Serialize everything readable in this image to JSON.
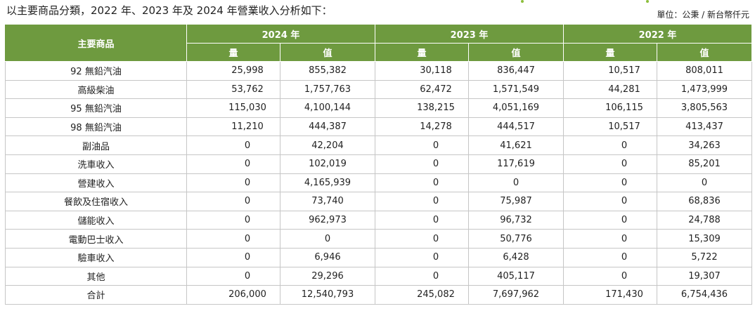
{
  "intro": "以主要商品分類，2022 年、2023 年及 2024 年營業收入分析如下：",
  "unit": "單位：公秉 / 新台幣仟元",
  "colors": {
    "header_bg": "#6e9a3f",
    "accent": "#8cbe3c",
    "border": "#c6c6c6"
  },
  "table": {
    "corner": "主要商品",
    "years": [
      "2024 年",
      "2023 年",
      "2022 年"
    ],
    "sub_q": "量",
    "sub_v": "值",
    "rows": [
      {
        "name": "92 無鉛汽油",
        "cells": [
          "25,998",
          "855,382",
          "30,118",
          "836,447",
          "10,517",
          "808,011"
        ]
      },
      {
        "name": "高級柴油",
        "cells": [
          "53,762",
          "1,757,763",
          "62,472",
          "1,571,549",
          "44,281",
          "1,473,999"
        ]
      },
      {
        "name": "95 無鉛汽油",
        "cells": [
          "115,030",
          "4,100,144",
          "138,215",
          "4,051,169",
          "106,115",
          "3,805,563"
        ]
      },
      {
        "name": "98 無鉛汽油",
        "cells": [
          "11,210",
          "444,387",
          "14,278",
          "444,517",
          "10,517",
          "413,437"
        ]
      },
      {
        "name": "副油品",
        "cells": [
          "0",
          "42,204",
          "0",
          "41,621",
          "0",
          "34,263"
        ]
      },
      {
        "name": "洗車收入",
        "cells": [
          "0",
          "102,019",
          "0",
          "117,619",
          "0",
          "85,201"
        ]
      },
      {
        "name": "營建收入",
        "cells": [
          "0",
          "4,165,939",
          "0",
          "0",
          "0",
          "0"
        ]
      },
      {
        "name": "餐飲及住宿收入",
        "cells": [
          "0",
          "73,740",
          "0",
          "75,987",
          "0",
          "68,836"
        ]
      },
      {
        "name": "儲能收入",
        "cells": [
          "0",
          "962,973",
          "0",
          "96,732",
          "0",
          "24,788"
        ]
      },
      {
        "name": "電動巴士收入",
        "cells": [
          "0",
          "0",
          "0",
          "50,776",
          "0",
          "15,309"
        ]
      },
      {
        "name": "驗車收入",
        "cells": [
          "0",
          "6,946",
          "0",
          "6,428",
          "0",
          "5,722"
        ]
      },
      {
        "name": "其他",
        "cells": [
          "0",
          "29,296",
          "0",
          "405,117",
          "0",
          "19,307"
        ]
      },
      {
        "name": "合計",
        "cells": [
          "206,000",
          "12,540,793",
          "245,082",
          "7,697,962",
          "171,430",
          "6,754,436"
        ]
      }
    ]
  }
}
